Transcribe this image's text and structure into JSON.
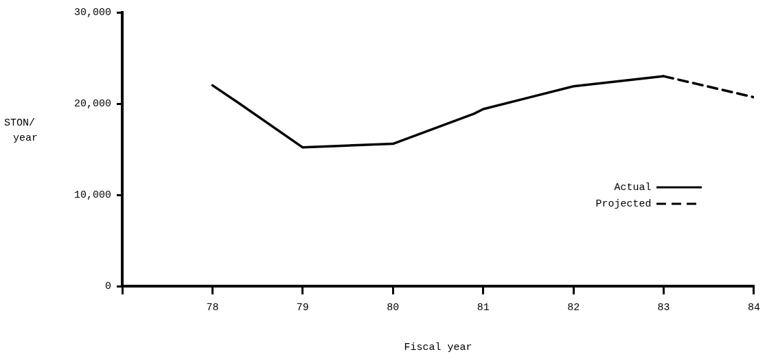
{
  "chart_data": {
    "type": "line",
    "xlabel": "Fiscal year",
    "ylabel": "STON/ year",
    "xlim": [
      77,
      84
    ],
    "xticks": [
      {
        "value": 77,
        "label": null
      },
      78,
      79,
      80,
      81,
      82,
      83,
      84
    ],
    "ylim": [
      0,
      30000
    ],
    "yticks": [
      0,
      {
        "value": 10000,
        "label": "10,000"
      },
      {
        "value": 20000,
        "label": "20,000"
      },
      {
        "value": 30000,
        "label": "30,000"
      }
    ],
    "grid": false,
    "legend": "right",
    "marker": "none",
    "series": [
      {
        "name": "Actual",
        "color": "#000000",
        "line_style": "solid",
        "x": [
          78,
          78.3,
          79,
          80,
          80.9,
          81,
          82,
          83
        ],
        "values": [
          22000,
          20000,
          15200,
          15600,
          18900,
          19400,
          21900,
          23000
        ]
      },
      {
        "name": "Projected",
        "color": "#000000",
        "line_style": "dashed",
        "x": [
          83,
          84
        ],
        "values": [
          23000,
          20700
        ]
      }
    ]
  }
}
